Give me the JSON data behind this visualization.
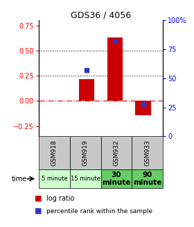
{
  "title": "GDS36 / 4056",
  "samples": [
    "GSM918",
    "GSM919",
    "GSM932",
    "GSM933"
  ],
  "time_labels": [
    "5 minute",
    "15 minute",
    "30\nminute",
    "90\nminute"
  ],
  "log_ratios": [
    0.0,
    0.22,
    0.63,
    -0.14
  ],
  "percentile_ranks": [
    null,
    57,
    82,
    28
  ],
  "ylim_left": [
    -0.35,
    0.8
  ],
  "ylim_right": [
    0,
    100
  ],
  "left_ticks": [
    -0.25,
    0,
    0.25,
    0.5,
    0.75
  ],
  "right_ticks": [
    0,
    25,
    50,
    75,
    100
  ],
  "bar_color": "#cc0000",
  "dot_color": "#3333cc",
  "bg_color": "#ffffff",
  "plot_bg": "#ffffff",
  "gsm_bg": "#c8c8c8",
  "time_bg_light": "#ccffcc",
  "time_bg_dark": "#66cc66",
  "zero_line_color": "#cc2222",
  "grid_color": "#000000",
  "bar_width": 0.55,
  "title_fontsize": 9,
  "tick_fontsize": 7,
  "legend_fontsize": 7,
  "table_fontsize_small": 6,
  "table_fontsize_large": 7.5
}
